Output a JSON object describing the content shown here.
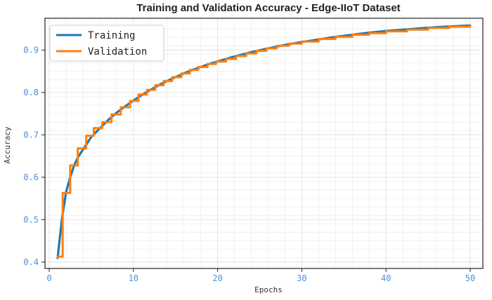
{
  "chart_data": {
    "type": "line",
    "title": "Training and Validation Accuracy - Edge-IIoT Dataset",
    "xlabel": "Epochs",
    "ylabel": "Accuracy",
    "xlim": [
      -0.5,
      51.5
    ],
    "ylim": [
      0.385,
      0.975
    ],
    "xticks": [
      0,
      10,
      20,
      30,
      40,
      50
    ],
    "yticks": [
      0.4,
      0.5,
      0.6,
      0.7,
      0.8,
      0.9
    ],
    "grid": true,
    "legend_position": "top-left",
    "series": [
      {
        "name": "Training",
        "color": "#1f77b4",
        "style": "smooth",
        "x": [
          1,
          1.5,
          2,
          2.5,
          3,
          3.5,
          4,
          5,
          6,
          7,
          8,
          9,
          10,
          11,
          12,
          13,
          14,
          15,
          16,
          17,
          18,
          19,
          20,
          22,
          24,
          26,
          28,
          30,
          32,
          34,
          36,
          38,
          40,
          42,
          44,
          46,
          48,
          50
        ],
        "values": [
          0.41,
          0.5,
          0.565,
          0.6,
          0.63,
          0.65,
          0.665,
          0.695,
          0.715,
          0.735,
          0.752,
          0.767,
          0.781,
          0.794,
          0.806,
          0.817,
          0.827,
          0.836,
          0.845,
          0.853,
          0.86,
          0.867,
          0.873,
          0.885,
          0.895,
          0.904,
          0.912,
          0.919,
          0.925,
          0.931,
          0.936,
          0.941,
          0.945,
          0.948,
          0.951,
          0.954,
          0.956,
          0.958
        ]
      },
      {
        "name": "Validation",
        "color": "#ff7f0e",
        "style": "step",
        "x": [
          1,
          1.6,
          2.5,
          3.4,
          4.4,
          5.3,
          6.3,
          7.4,
          8.5,
          9.6,
          10.6,
          11.6,
          12.6,
          13.6,
          14.6,
          15.7,
          16.7,
          17.7,
          18.8,
          19.8,
          21,
          22.2,
          23.4,
          24.6,
          25.8,
          27,
          28.5,
          30,
          32,
          34,
          36,
          38,
          40,
          42.5,
          45,
          47.5,
          50
        ],
        "values": [
          0.413,
          0.563,
          0.628,
          0.668,
          0.698,
          0.716,
          0.73,
          0.748,
          0.765,
          0.78,
          0.795,
          0.806,
          0.817,
          0.827,
          0.836,
          0.845,
          0.853,
          0.86,
          0.867,
          0.873,
          0.879,
          0.886,
          0.892,
          0.898,
          0.904,
          0.91,
          0.915,
          0.92,
          0.926,
          0.931,
          0.936,
          0.94,
          0.944,
          0.948,
          0.952,
          0.955,
          0.958
        ]
      }
    ]
  },
  "style": {
    "background": "#ffffff",
    "grid_major": "#e3e3e3",
    "grid_minor": "#f1f1f1",
    "frame": "#222222",
    "tick_label_color": "#4a90e2"
  }
}
